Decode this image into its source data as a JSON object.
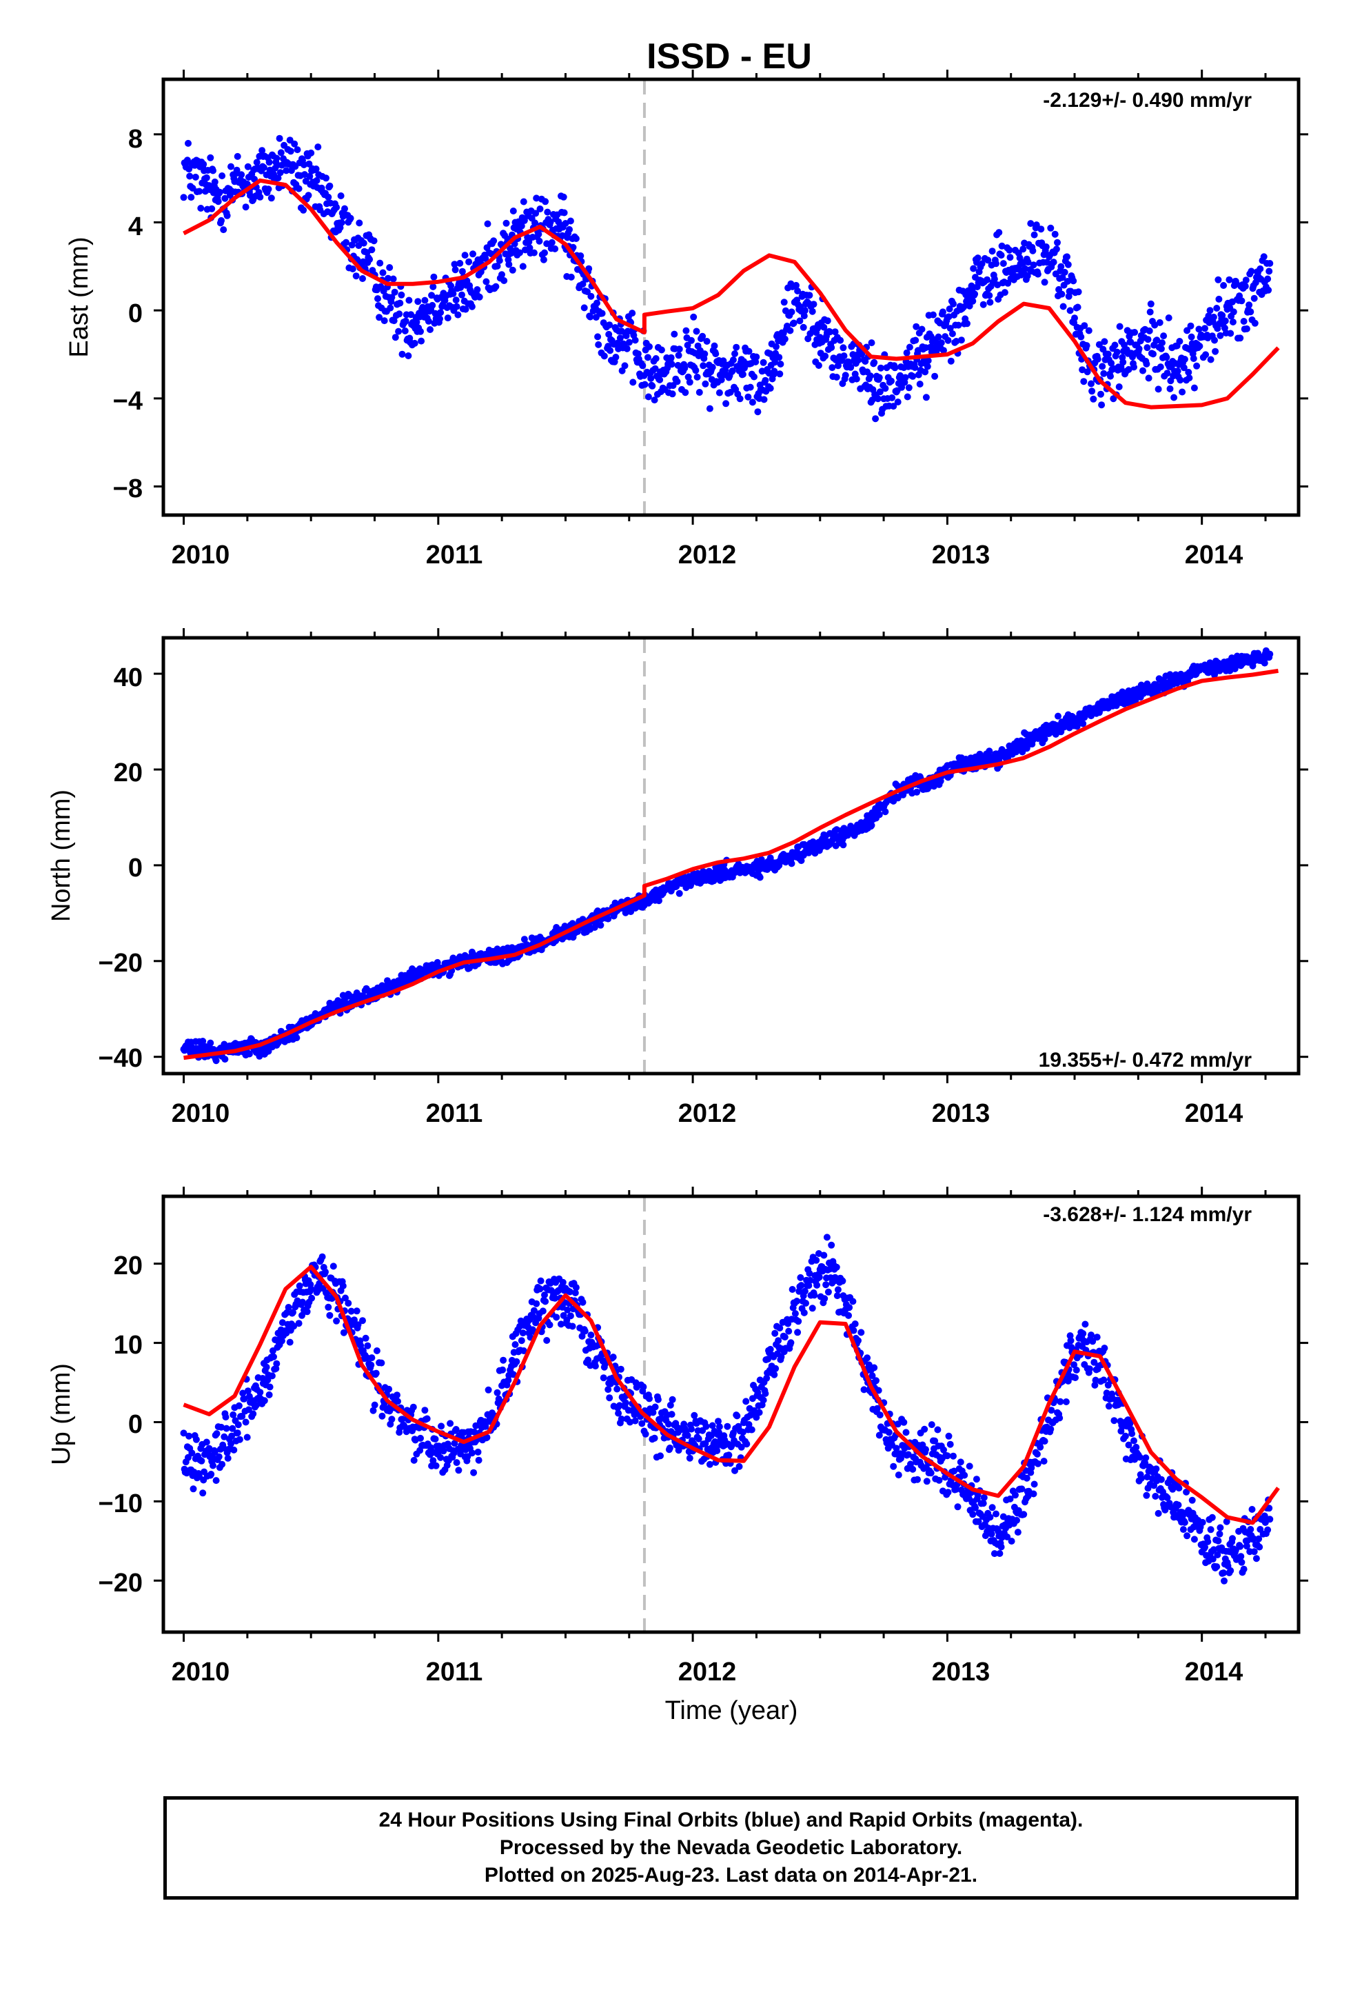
{
  "title": "ISSD - EU",
  "xlabel": "Time (year)",
  "x_ticks": [
    "2010",
    "2011",
    "2012",
    "2013",
    "2014"
  ],
  "colors": {
    "points": "#0000ff",
    "fit": "#ff0000",
    "break_line": "#c0c0c0",
    "frame": "#000000"
  },
  "footer": {
    "line1": "24 Hour Positions Using Final Orbits (blue) and Rapid Orbits (magenta).",
    "line2": "Processed by the Nevada Geodetic Laboratory.",
    "line3": "Plotted on 2025-Aug-23. Last data on 2014-Apr-21."
  },
  "chart_data": [
    {
      "type": "scatter",
      "name": "east",
      "ylabel": "East (mm)",
      "rate": "-2.129+/- 0.490 mm/yr",
      "xlim": [
        2009.92,
        2014.38
      ],
      "ylim": [
        -9.3,
        10.5
      ],
      "y_ticks": [
        -8,
        -4,
        0,
        4,
        8
      ],
      "y_tick_labels": [
        "−8",
        "−4",
        "0",
        "4",
        "8"
      ],
      "break_x": 2011.81,
      "fit": {
        "x": [
          2010.0,
          2010.1,
          2010.2,
          2010.3,
          2010.4,
          2010.5,
          2010.6,
          2010.7,
          2010.8,
          2010.9,
          2011.0,
          2011.1,
          2011.2,
          2011.3,
          2011.4,
          2011.5,
          2011.6,
          2011.7,
          2011.81,
          2011.81,
          2011.9,
          2012.0,
          2012.1,
          2012.2,
          2012.3,
          2012.4,
          2012.5,
          2012.6,
          2012.7,
          2012.8,
          2012.9,
          2013.0,
          2013.1,
          2013.2,
          2013.3,
          2013.4,
          2013.5,
          2013.6,
          2013.7,
          2013.8,
          2013.9,
          2014.0,
          2014.1,
          2014.2,
          2014.3
        ],
        "y": [
          3.5,
          4.1,
          5.1,
          5.9,
          5.7,
          4.6,
          3.1,
          1.8,
          1.2,
          1.2,
          1.3,
          1.5,
          2.2,
          3.3,
          3.8,
          3.0,
          1.4,
          -0.4,
          -1.0,
          -0.2,
          -0.05,
          0.1,
          0.7,
          1.8,
          2.5,
          2.2,
          0.8,
          -0.9,
          -2.1,
          -2.2,
          -2.1,
          -2.0,
          -1.5,
          -0.5,
          0.3,
          0.1,
          -1.4,
          -3.2,
          -4.2,
          -4.4,
          -4.35,
          -4.3,
          -4.0,
          -2.9,
          -1.7
        ]
      },
      "points": {
        "x": [
          2010.0,
          2010.07,
          2010.13,
          2010.2,
          2010.27,
          2010.33,
          2010.4,
          2010.47,
          2010.53,
          2010.6,
          2010.67,
          2010.73,
          2010.8,
          2010.87,
          2010.93,
          2011.0,
          2011.07,
          2011.13,
          2011.2,
          2011.27,
          2011.33,
          2011.4,
          2011.47,
          2011.53,
          2011.6,
          2011.67,
          2011.73,
          2011.8,
          2011.87,
          2011.93,
          2012.0,
          2012.07,
          2012.13,
          2012.2,
          2012.27,
          2012.33,
          2012.4,
          2012.47,
          2012.53,
          2012.6,
          2012.67,
          2012.73,
          2012.8,
          2012.87,
          2012.93,
          2013.0,
          2013.07,
          2013.13,
          2013.2,
          2013.27,
          2013.33,
          2013.4,
          2013.47,
          2013.53,
          2013.6,
          2013.67,
          2013.73,
          2013.8,
          2013.87,
          2013.93,
          2014.0,
          2014.07,
          2014.13,
          2014.2,
          2014.27
        ],
        "y": [
          6.5,
          5.8,
          5.2,
          5.6,
          5.9,
          6.2,
          6.8,
          5.9,
          5.5,
          4.2,
          2.9,
          2.1,
          0.6,
          -0.6,
          -0.2,
          0.6,
          0.8,
          1.1,
          2.3,
          2.8,
          3.5,
          3.6,
          3.9,
          2.6,
          0.9,
          -1.0,
          -1.4,
          -2.4,
          -3.2,
          -2.4,
          -2.1,
          -2.6,
          -2.9,
          -2.8,
          -3.4,
          -1.7,
          0.6,
          -0.1,
          -1.6,
          -2.4,
          -2.6,
          -3.6,
          -3.2,
          -2.2,
          -1.9,
          -0.6,
          0.2,
          1.4,
          1.8,
          1.9,
          2.6,
          2.4,
          1.6,
          -1.8,
          -2.9,
          -2.4,
          -1.9,
          -1.6,
          -2.1,
          -2.6,
          -1.2,
          -0.4,
          0.2,
          0.6,
          1.7
        ]
      }
    },
    {
      "type": "scatter",
      "name": "north",
      "ylabel": "North (mm)",
      "rate": "19.355+/- 0.472 mm/yr",
      "xlim": [
        2009.92,
        2014.38
      ],
      "ylim": [
        -43.5,
        47.5
      ],
      "y_ticks": [
        -40,
        -20,
        0,
        20,
        40
      ],
      "y_tick_labels": [
        "−40",
        "−20",
        "0",
        "20",
        "40"
      ],
      "break_x": 2011.81,
      "fit": {
        "x": [
          2010.0,
          2010.1,
          2010.2,
          2010.3,
          2010.4,
          2010.5,
          2010.6,
          2010.7,
          2010.8,
          2010.9,
          2011.0,
          2011.1,
          2011.2,
          2011.3,
          2011.4,
          2011.5,
          2011.6,
          2011.7,
          2011.81,
          2011.81,
          2011.9,
          2012.0,
          2012.1,
          2012.2,
          2012.3,
          2012.4,
          2012.5,
          2012.6,
          2012.7,
          2012.8,
          2012.9,
          2013.0,
          2013.1,
          2013.2,
          2013.3,
          2013.4,
          2013.5,
          2013.6,
          2013.7,
          2013.8,
          2013.9,
          2014.0,
          2014.1,
          2014.2,
          2014.3
        ],
        "y": [
          -40.2,
          -39.5,
          -38.8,
          -37.5,
          -35.3,
          -32.8,
          -30.6,
          -28.7,
          -26.9,
          -24.8,
          -22.2,
          -20.3,
          -19.6,
          -18.7,
          -16.6,
          -14.0,
          -11.4,
          -9.0,
          -6.3,
          -4.3,
          -2.8,
          -0.8,
          0.6,
          1.4,
          2.6,
          4.9,
          7.8,
          10.5,
          13.0,
          15.4,
          17.6,
          19.4,
          20.2,
          21.1,
          22.4,
          24.7,
          27.5,
          30.1,
          32.6,
          34.7,
          36.8,
          38.5,
          39.2,
          39.8,
          40.6
        ]
      },
      "points": {
        "x": [
          2010.0,
          2010.07,
          2010.13,
          2010.2,
          2010.27,
          2010.33,
          2010.4,
          2010.47,
          2010.53,
          2010.6,
          2010.67,
          2010.73,
          2010.8,
          2010.87,
          2010.93,
          2011.0,
          2011.07,
          2011.13,
          2011.2,
          2011.27,
          2011.33,
          2011.4,
          2011.47,
          2011.53,
          2011.6,
          2011.67,
          2011.73,
          2011.8,
          2011.87,
          2011.93,
          2012.0,
          2012.07,
          2012.13,
          2012.2,
          2012.27,
          2012.33,
          2012.4,
          2012.47,
          2012.53,
          2012.6,
          2012.67,
          2012.73,
          2012.8,
          2012.87,
          2012.93,
          2013.0,
          2013.07,
          2013.13,
          2013.2,
          2013.27,
          2013.33,
          2013.4,
          2013.47,
          2013.53,
          2013.6,
          2013.67,
          2013.73,
          2013.8,
          2013.87,
          2013.93,
          2014.0,
          2014.07,
          2014.13,
          2014.2,
          2014.27
        ],
        "y": [
          -38.2,
          -38.6,
          -39.1,
          -38.2,
          -37.8,
          -37.6,
          -35.6,
          -33.8,
          -31.2,
          -29.6,
          -28.2,
          -27.4,
          -25.7,
          -23.9,
          -22.6,
          -21.6,
          -20.9,
          -19.7,
          -19.4,
          -18.7,
          -17.9,
          -16.2,
          -14.6,
          -13.4,
          -11.7,
          -10.2,
          -8.4,
          -7.9,
          -5.9,
          -4.2,
          -3.4,
          -2.2,
          -1.2,
          -1.1,
          -0.6,
          0.4,
          1.6,
          3.6,
          5.2,
          6.4,
          8.1,
          11.6,
          15.4,
          16.6,
          17.4,
          19.5,
          21.4,
          21.8,
          22.4,
          24.6,
          26.5,
          28.6,
          29.6,
          31.4,
          32.8,
          34.4,
          35.8,
          36.6,
          38.3,
          39.2,
          41.0,
          41.6,
          42.1,
          43.2,
          44.0
        ]
      }
    },
    {
      "type": "scatter",
      "name": "up",
      "ylabel": "Up (mm)",
      "rate": "-3.628+/- 1.124 mm/yr",
      "xlim": [
        2009.92,
        2014.38
      ],
      "ylim": [
        -26.5,
        28.5
      ],
      "y_ticks": [
        -20,
        -10,
        0,
        10,
        20
      ],
      "y_tick_labels": [
        "−20",
        "−10",
        "0",
        "10",
        "20"
      ],
      "break_x": 2011.81,
      "fit": {
        "x": [
          2010.0,
          2010.1,
          2010.2,
          2010.3,
          2010.4,
          2010.5,
          2010.6,
          2010.7,
          2010.8,
          2010.9,
          2011.0,
          2011.1,
          2011.2,
          2011.3,
          2011.4,
          2011.5,
          2011.6,
          2011.7,
          2011.8,
          2011.9,
          2012.0,
          2012.1,
          2012.2,
          2012.3,
          2012.4,
          2012.5,
          2012.6,
          2012.7,
          2012.8,
          2012.9,
          2013.0,
          2013.1,
          2013.2,
          2013.3,
          2013.4,
          2013.5,
          2013.6,
          2013.7,
          2013.8,
          2013.9,
          2014.0,
          2014.1,
          2014.2,
          2014.3
        ],
        "y": [
          2.2,
          1.0,
          3.3,
          9.8,
          16.8,
          19.6,
          15.8,
          7.2,
          2.7,
          0.3,
          -1.2,
          -2.5,
          -1.2,
          5.0,
          12.2,
          16.0,
          12.8,
          5.6,
          1.2,
          -1.6,
          -3.3,
          -4.8,
          -4.9,
          -0.6,
          7.0,
          12.6,
          12.4,
          4.5,
          -1.2,
          -4.3,
          -6.5,
          -8.5,
          -9.3,
          -5.6,
          2.4,
          8.9,
          8.3,
          2.3,
          -3.8,
          -7.2,
          -9.5,
          -12.0,
          -12.7,
          -8.3
        ]
      },
      "points": {
        "x": [
          2010.0,
          2010.07,
          2010.13,
          2010.2,
          2010.27,
          2010.33,
          2010.4,
          2010.47,
          2010.53,
          2010.6,
          2010.67,
          2010.73,
          2010.8,
          2010.87,
          2010.93,
          2011.0,
          2011.07,
          2011.13,
          2011.2,
          2011.27,
          2011.33,
          2011.4,
          2011.47,
          2011.53,
          2011.6,
          2011.67,
          2011.73,
          2011.8,
          2011.87,
          2011.93,
          2012.0,
          2012.07,
          2012.13,
          2012.2,
          2012.27,
          2012.33,
          2012.4,
          2012.47,
          2012.53,
          2012.6,
          2012.67,
          2012.73,
          2012.8,
          2012.87,
          2012.93,
          2013.0,
          2013.07,
          2013.13,
          2013.2,
          2013.27,
          2013.33,
          2013.4,
          2013.47,
          2013.53,
          2013.6,
          2013.67,
          2013.73,
          2013.8,
          2013.87,
          2013.93,
          2014.0,
          2014.07,
          2014.13,
          2014.2,
          2014.27
        ],
        "y": [
          -3.6,
          -5.2,
          -3.1,
          -1.2,
          2.4,
          6.1,
          11.8,
          16.4,
          18.2,
          15.6,
          11.4,
          6.8,
          2.6,
          0.2,
          -1.4,
          -3.0,
          -3.8,
          -2.6,
          0.6,
          5.2,
          10.6,
          14.2,
          15.8,
          14.8,
          10.6,
          6.1,
          3.2,
          1.0,
          -0.6,
          -0.4,
          -1.6,
          -2.4,
          -3.6,
          -1.6,
          3.4,
          9.6,
          14.0,
          17.6,
          19.6,
          14.8,
          7.6,
          1.2,
          -3.2,
          -4.6,
          -4.2,
          -5.6,
          -8.0,
          -11.2,
          -15.0,
          -10.8,
          -6.4,
          0.2,
          6.4,
          9.6,
          8.6,
          2.4,
          -3.6,
          -6.8,
          -9.4,
          -11.6,
          -14.4,
          -17.2,
          -16.2,
          -14.2,
          -11.6
        ]
      }
    }
  ]
}
